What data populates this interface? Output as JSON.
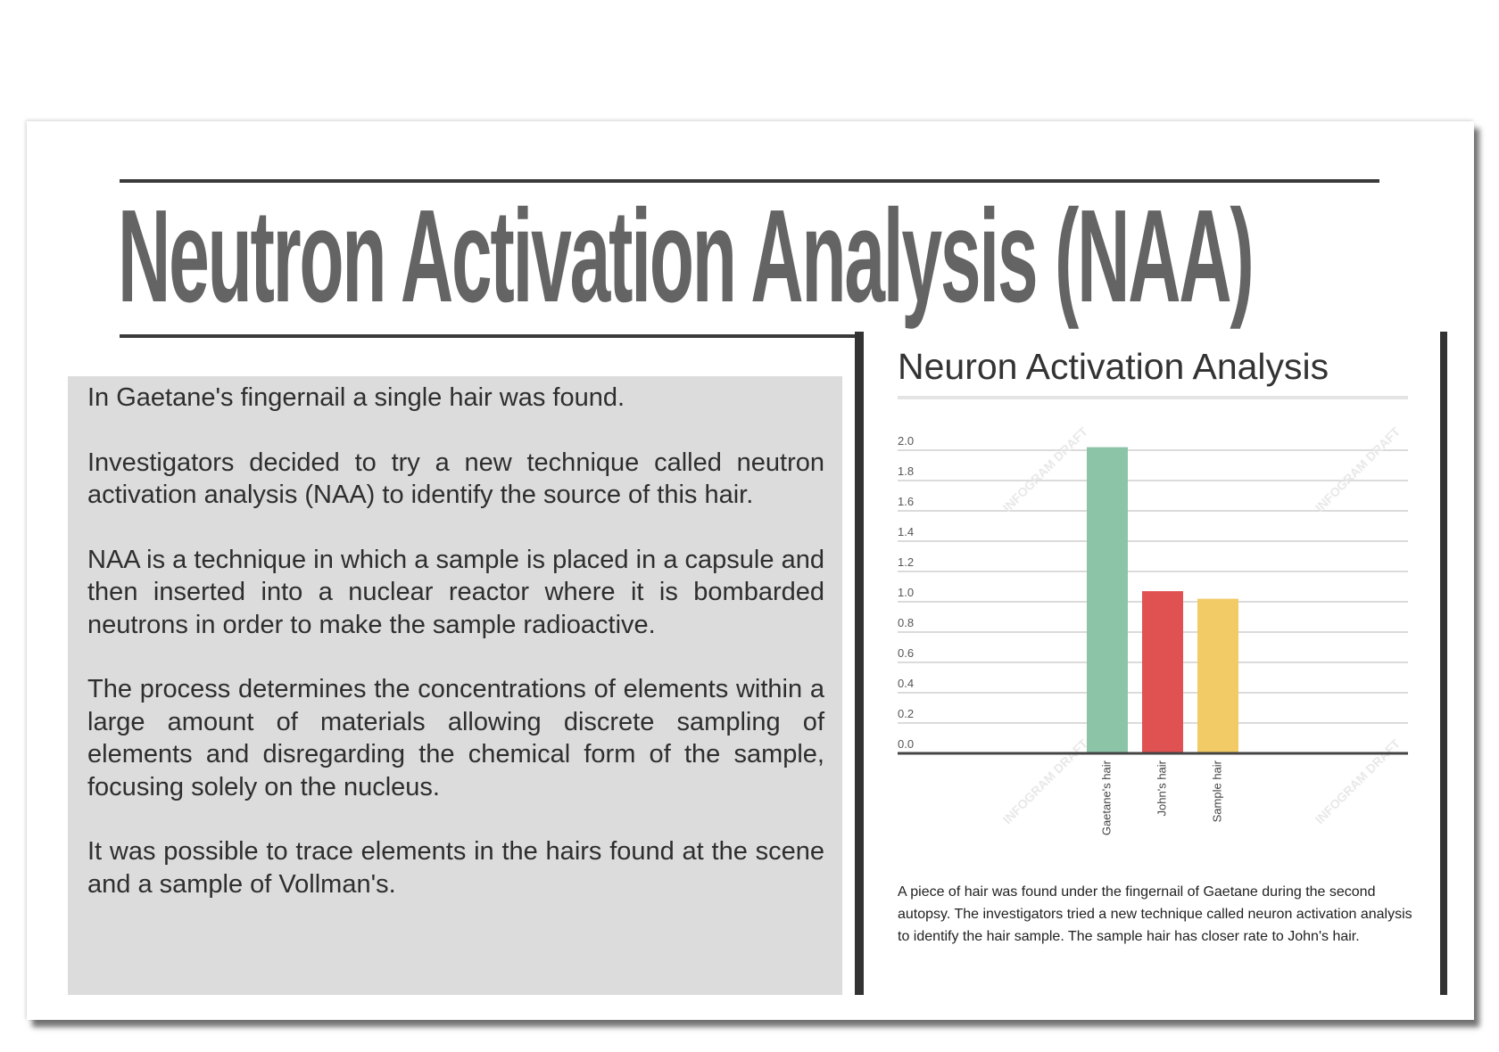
{
  "page": {
    "title": "Neutron Activation Analysis (NAA)",
    "paragraphs": [
      "In Gaetane's fingernail a single hair was found.",
      "Investigators decided to try a new technique called neutron activation analysis (NAA) to identify the source of this hair.",
      "NAA is a technique in which a sample is placed in a capsule and then inserted into a nuclear reactor where it is bombarded neutrons in order to make the sample radioactive.",
      "The process determines the concentrations of elements within a large amount of materials allowing discrete sampling of elements and disregarding the chemical form of the sample, focusing solely on the nucleus.",
      "It was possible to trace elements in the hairs found at the scene and a sample of Vollman's."
    ],
    "caption": "A piece of hair was found under the fingernail of Gaetane during the second autopsy. The investigators tried a new technique called neuron activation analysis to identify the hair sample. The sample hair has closer rate to John's hair.",
    "watermark": "INFOGRAM DRAFT"
  },
  "chart_data": {
    "type": "bar",
    "title": "Neuron Activation Analysis",
    "categories": [
      "Gaetane's hair",
      "John's hair",
      "Sample hair"
    ],
    "values": [
      2.02,
      1.07,
      1.02
    ],
    "colors": [
      "#8cc4a8",
      "#e05252",
      "#f2cb66"
    ],
    "ylim": [
      0,
      2.0
    ],
    "yticks": [
      "0.0",
      "0.2",
      "0.4",
      "0.6",
      "0.8",
      "1.0",
      "1.2",
      "1.4",
      "1.6",
      "1.8",
      "2.0"
    ],
    "grid": true,
    "xlabel": "",
    "ylabel": "",
    "legend": "none"
  }
}
